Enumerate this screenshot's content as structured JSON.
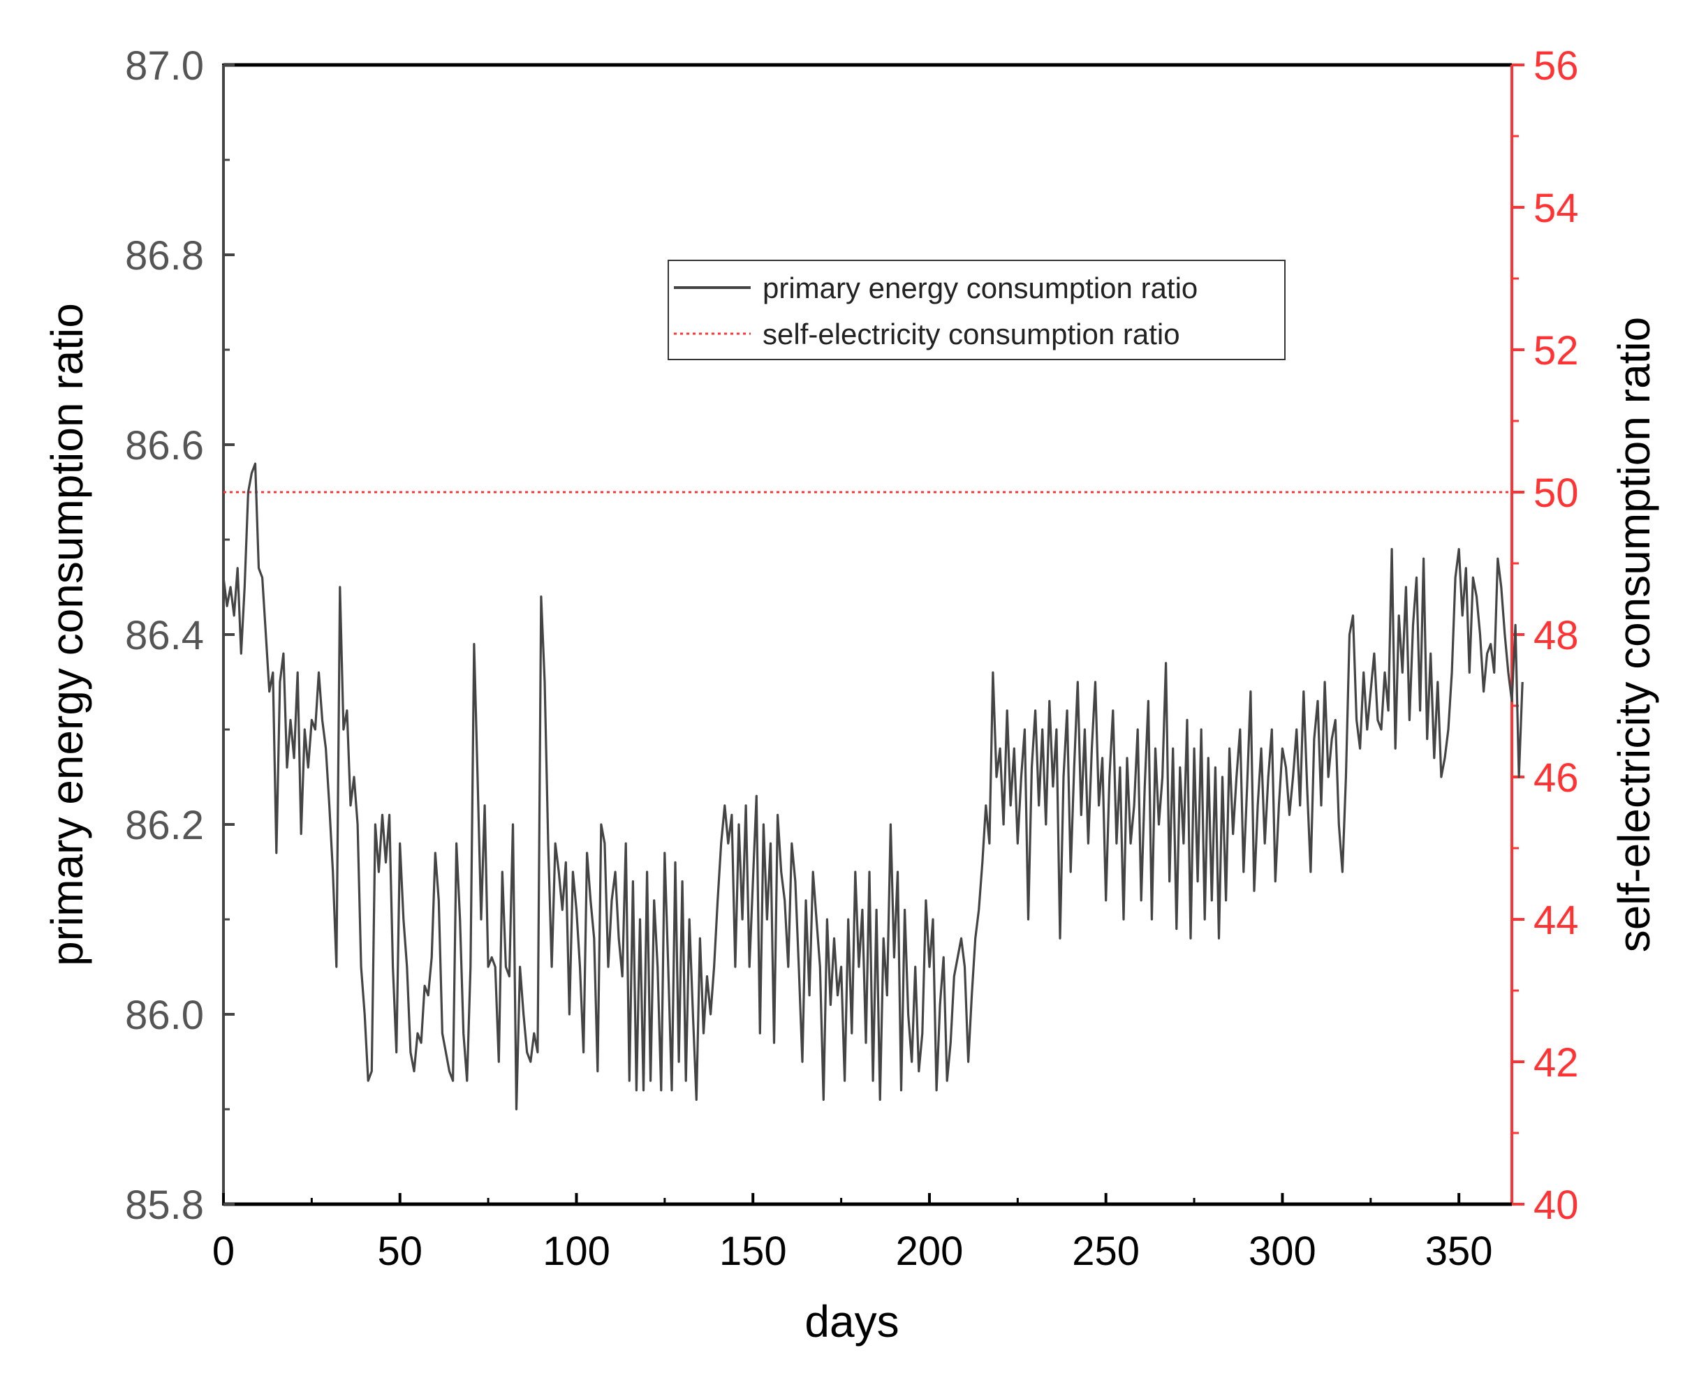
{
  "chart_data": {
    "type": "line",
    "title": "",
    "xlabel": "days",
    "ylabel_left": "primary energy consumption ratio",
    "ylabel_right": "self-electricity consumption ratio",
    "xlim": [
      0,
      365
    ],
    "ylim_left": [
      85.8,
      87.0
    ],
    "ylim_right": [
      40,
      56
    ],
    "x_ticks": [
      0,
      50,
      100,
      150,
      200,
      250,
      300,
      350
    ],
    "x_tick_labels": [
      "0",
      "50",
      "100",
      "150",
      "200",
      "250",
      "300",
      "350"
    ],
    "y_left_ticks": [
      85.8,
      86.0,
      86.2,
      86.4,
      86.6,
      86.8,
      87.0
    ],
    "y_left_tick_labels": [
      "85.8",
      "86.0",
      "86.2",
      "86.4",
      "86.6",
      "86.8",
      "87.0"
    ],
    "y_right_ticks": [
      40,
      42,
      44,
      46,
      48,
      50,
      52,
      54,
      56
    ],
    "y_right_tick_labels": [
      "40",
      "42",
      "44",
      "46",
      "48",
      "50",
      "52",
      "54",
      "56"
    ],
    "grid": false,
    "legend_position": "upper-center",
    "colors": {
      "primary": "#444444",
      "self": "#ff3333",
      "right_axis": "#ff3333"
    },
    "series": [
      {
        "name": "primary energy consumption ratio",
        "axis": "left",
        "style": "solid",
        "x_start": 0,
        "x_step": 1,
        "values": [
          86.46,
          86.43,
          86.45,
          86.42,
          86.47,
          86.38,
          86.45,
          86.55,
          86.57,
          86.58,
          86.47,
          86.46,
          86.4,
          86.34,
          86.36,
          86.17,
          86.35,
          86.38,
          86.26,
          86.31,
          86.27,
          86.36,
          86.19,
          86.3,
          86.26,
          86.31,
          86.3,
          86.36,
          86.31,
          86.28,
          86.22,
          86.15,
          86.05,
          86.45,
          86.3,
          86.32,
          86.22,
          86.25,
          86.2,
          86.05,
          86.0,
          85.93,
          85.94,
          86.2,
          86.15,
          86.21,
          86.16,
          86.21,
          86.05,
          85.96,
          86.18,
          86.1,
          86.05,
          85.96,
          85.94,
          85.98,
          85.97,
          86.03,
          86.02,
          86.06,
          86.17,
          86.12,
          85.98,
          85.96,
          85.94,
          85.93,
          86.18,
          86.1,
          85.98,
          85.93,
          86.05,
          86.39,
          86.25,
          86.1,
          86.22,
          86.05,
          86.06,
          86.05,
          85.95,
          86.15,
          86.05,
          86.04,
          86.2,
          85.9,
          86.05,
          86.0,
          85.96,
          85.95,
          85.98,
          85.96,
          86.44,
          86.35,
          86.18,
          86.05,
          86.18,
          86.15,
          86.11,
          86.16,
          86.0,
          86.15,
          86.11,
          86.05,
          85.96,
          86.17,
          86.12,
          86.08,
          85.94,
          86.2,
          86.18,
          86.05,
          86.12,
          86.15,
          86.08,
          86.04,
          86.18,
          85.93,
          86.14,
          85.92,
          86.1,
          85.92,
          86.15,
          85.93,
          86.12,
          86.05,
          85.92,
          86.17,
          86.05,
          85.92,
          86.16,
          85.95,
          86.14,
          85.93,
          86.1,
          86.0,
          85.91,
          86.08,
          85.98,
          86.04,
          86.0,
          86.05,
          86.12,
          86.18,
          86.22,
          86.18,
          86.21,
          86.05,
          86.2,
          86.1,
          86.22,
          86.05,
          86.14,
          86.23,
          85.98,
          86.2,
          86.1,
          86.18,
          85.97,
          86.21,
          86.15,
          86.12,
          86.05,
          86.18,
          86.14,
          86.05,
          85.95,
          86.12,
          86.02,
          86.15,
          86.1,
          86.05,
          85.91,
          86.1,
          86.01,
          86.08,
          86.02,
          86.05,
          85.93,
          86.1,
          85.98,
          86.15,
          86.05,
          86.11,
          85.97,
          86.15,
          85.93,
          86.11,
          85.91,
          86.08,
          86.02,
          86.2,
          86.06,
          86.15,
          85.92,
          86.11,
          86.0,
          85.95,
          86.05,
          85.94,
          85.98,
          86.12,
          86.05,
          86.1,
          85.92,
          86.01,
          86.06,
          85.93,
          85.97,
          86.04,
          86.06,
          86.08,
          86.05,
          85.95,
          86.02,
          86.08,
          86.11,
          86.16,
          86.22,
          86.18,
          86.36,
          86.25,
          86.28,
          86.2,
          86.32,
          86.22,
          86.28,
          86.18,
          86.25,
          86.3,
          86.1,
          86.26,
          86.32,
          86.22,
          86.3,
          86.2,
          86.33,
          86.24,
          86.3,
          86.08,
          86.25,
          86.32,
          86.15,
          86.26,
          86.35,
          86.21,
          86.3,
          86.18,
          86.28,
          86.35,
          86.22,
          86.27,
          86.12,
          86.25,
          86.32,
          86.18,
          86.26,
          86.1,
          86.27,
          86.18,
          86.22,
          86.3,
          86.12,
          86.24,
          86.33,
          86.1,
          86.28,
          86.2,
          86.25,
          86.37,
          86.14,
          86.28,
          86.09,
          86.26,
          86.18,
          86.31,
          86.08,
          86.28,
          86.14,
          86.3,
          86.1,
          86.27,
          86.12,
          86.26,
          86.08,
          86.25,
          86.12,
          86.28,
          86.19,
          86.25,
          86.3,
          86.15,
          86.24,
          86.34,
          86.13,
          86.22,
          86.28,
          86.18,
          86.25,
          86.3,
          86.14,
          86.22,
          86.28,
          86.26,
          86.21,
          86.25,
          86.3,
          86.22,
          86.34,
          86.24,
          86.15,
          86.29,
          86.33,
          86.22,
          86.35,
          86.25,
          86.29,
          86.31,
          86.2,
          86.15,
          86.25,
          86.4,
          86.42,
          86.31,
          86.28,
          86.36,
          86.3,
          86.34,
          86.38,
          86.31,
          86.3,
          86.36,
          86.32,
          86.49,
          86.28,
          86.42,
          86.36,
          86.45,
          86.31,
          86.41,
          86.46,
          86.32,
          86.48,
          86.29,
          86.38,
          86.27,
          86.35,
          86.25,
          86.27,
          86.3,
          86.36,
          86.46,
          86.49,
          86.42,
          86.47,
          86.36,
          86.46,
          86.44,
          86.4,
          86.34,
          86.38,
          86.39,
          86.36,
          86.48,
          86.45,
          86.4,
          86.36,
          86.33,
          86.41,
          86.25,
          86.35
        ]
      },
      {
        "name": "self-electricity consumption ratio",
        "axis": "right",
        "style": "dotted",
        "constant_value": 50,
        "x": [
          0,
          365
        ],
        "values": [
          50,
          50
        ]
      }
    ]
  }
}
